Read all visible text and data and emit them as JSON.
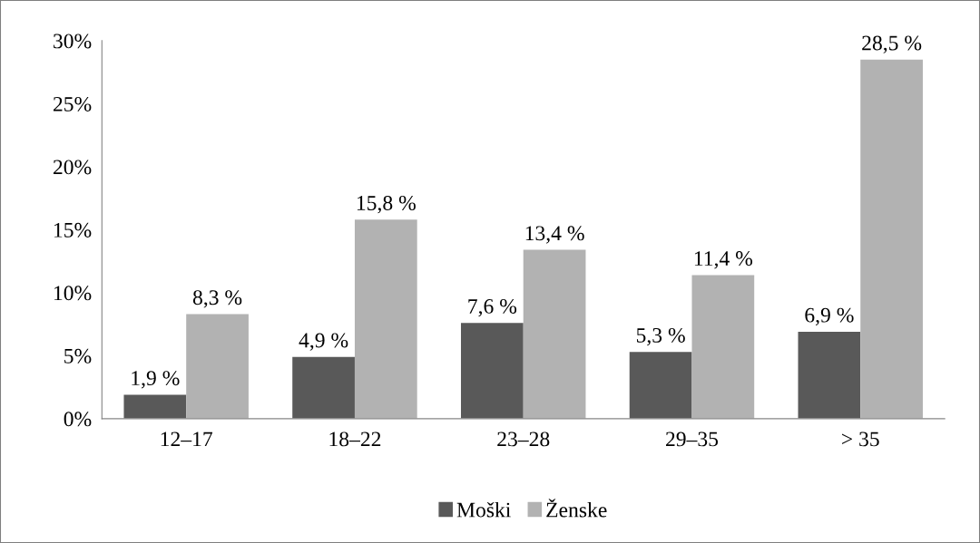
{
  "chart_data": {
    "type": "bar",
    "categories": [
      "12–17",
      "18–22",
      "23–28",
      "29–35",
      "> 35"
    ],
    "series": [
      {
        "name": "Moški",
        "color": "#595959",
        "values": [
          1.9,
          4.9,
          7.6,
          5.3,
          6.9
        ],
        "value_labels": [
          "1,9 %",
          "4,9 %",
          "7,6 %",
          "5,3 %",
          "6,9 %"
        ]
      },
      {
        "name": "Ženske",
        "color": "#b2b2b2",
        "values": [
          8.3,
          15.8,
          13.4,
          11.4,
          28.5
        ],
        "value_labels": [
          "8,3 %",
          "15,8 %",
          "13,4 %",
          "11,4 %",
          "28,5 %"
        ]
      }
    ],
    "ylim": [
      0,
      30
    ],
    "yticks": [
      {
        "value": 0,
        "label": "0%"
      },
      {
        "value": 5,
        "label": "5%"
      },
      {
        "value": 10,
        "label": "10%"
      },
      {
        "value": 15,
        "label": "15%"
      },
      {
        "value": 20,
        "label": "20%"
      },
      {
        "value": 25,
        "label": "25%"
      },
      {
        "value": 30,
        "label": "30%"
      }
    ],
    "grid": false,
    "legend": "bottom"
  }
}
